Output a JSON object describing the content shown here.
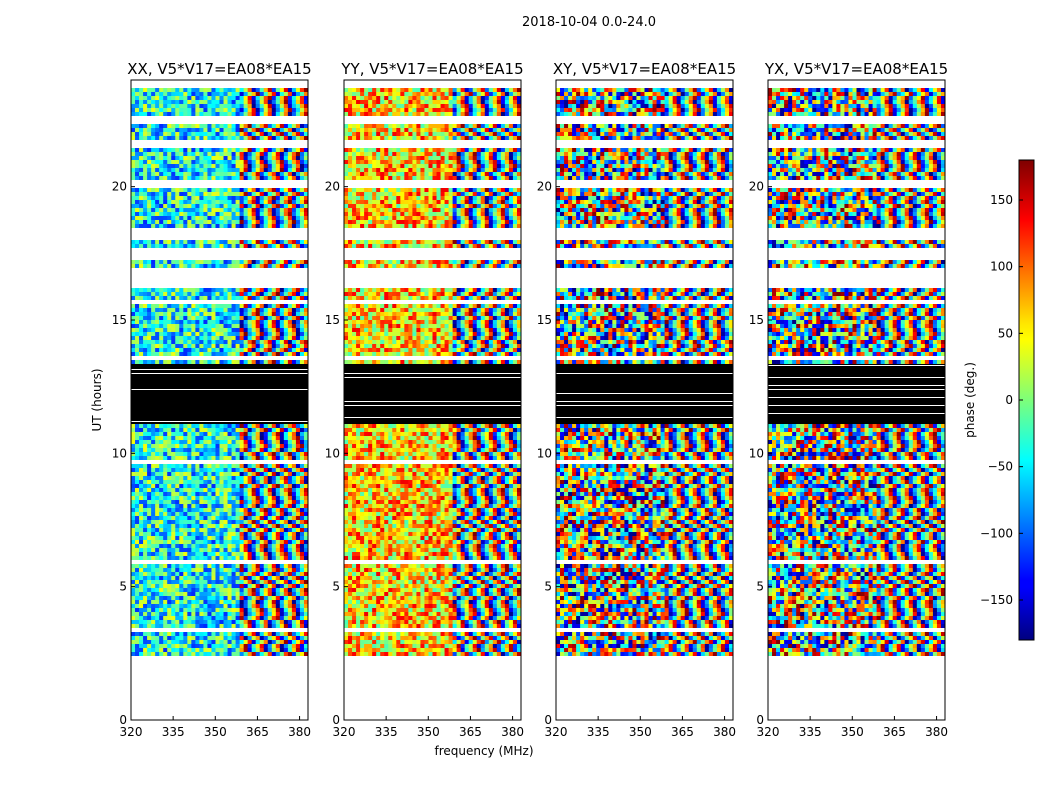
{
  "figure": {
    "suptitle": "2018-10-04 0.0-24.0",
    "xlabel": "frequency (MHz)",
    "ylabel": "UT (hours)",
    "colorbar_label": "phase (deg.)"
  },
  "chart_data": {
    "type": "heatmap",
    "title": "2018-10-04 0.0-24.0",
    "xlabel": "frequency (MHz)",
    "ylabel": "UT (hours)",
    "xlim": [
      320,
      383
    ],
    "ylim": [
      0,
      24
    ],
    "xticks": [
      320,
      335,
      350,
      365,
      380
    ],
    "yticks": [
      0,
      5,
      10,
      15,
      20
    ],
    "colormap": "jet",
    "colorbar": {
      "label": "phase (deg.)",
      "range": [
        -180,
        180
      ],
      "ticks": [
        -150,
        -100,
        -50,
        0,
        50,
        100,
        150
      ],
      "tick_labels": [
        "−150",
        "−100",
        "−50",
        "0",
        "50",
        "100",
        "150"
      ]
    },
    "panels": [
      {
        "title": "XX, V5*V17=EA08*EA15",
        "mean_phase": -40
      },
      {
        "title": "YY, V5*V17=EA08*EA15",
        "mean_phase": 60
      },
      {
        "title": "XY, V5*V17=EA08*EA15",
        "mean_phase": null
      },
      {
        "title": "YX, V5*V17=EA08*EA15",
        "mean_phase": null
      }
    ],
    "data_time_range_hours": [
      2.4,
      23.7
    ],
    "flagged_bands_hours": [
      [
        11.1,
        13.4
      ]
    ],
    "gap_bands_hours": [
      [
        0,
        2.4
      ],
      [
        3.3,
        3.5
      ],
      [
        5.85,
        6.0
      ],
      [
        9.6,
        9.8
      ],
      [
        13.5,
        13.7
      ],
      [
        15.6,
        15.75
      ],
      [
        16.2,
        16.9
      ],
      [
        17.3,
        17.7
      ],
      [
        18.0,
        18.4
      ],
      [
        20.0,
        20.2
      ],
      [
        21.5,
        21.8
      ],
      [
        22.3,
        22.7
      ]
    ]
  }
}
